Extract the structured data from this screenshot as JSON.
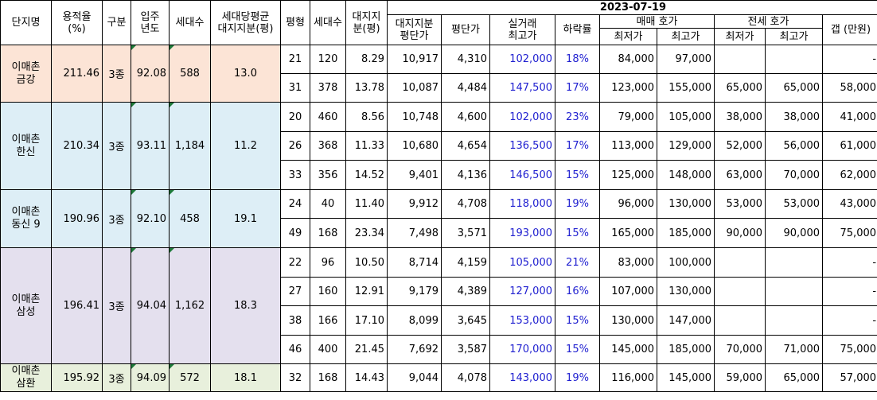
{
  "date": "2023-07-19",
  "headers": {
    "name": "단지명",
    "far_1": "용적율",
    "far_2": "(%)",
    "type": "구분",
    "year_1": "입주",
    "year_2": "년도",
    "households": "세대수",
    "avg_land_1": "세대당평균",
    "avg_land_2": "대지지분(평)",
    "pyeong": "평형",
    "unit_households": "세대수",
    "land_1": "대지지",
    "land_2": "분(평)",
    "land_price_1": "대지지분",
    "land_price_2": "평단가",
    "price_per_pyeong": "평단가",
    "actual_high_1": "실거래",
    "actual_high_2": "최고가",
    "drop_rate": "하락률",
    "sale_group": "매매 호가",
    "lease_group": "전세 호가",
    "lowest": "최저가",
    "highest": "최고가",
    "gap": "갭 (만원)"
  },
  "complexes": [
    {
      "name_1": "이매촌",
      "name_2": "금강",
      "far": "211.46",
      "type": "3종",
      "year": "92.08",
      "households": "588",
      "avg_land": "13.0",
      "units": [
        {
          "pyeong": "21",
          "households": "120",
          "land": "8.29",
          "land_price": "10,917",
          "ppp": "4,310",
          "actual_high": "102,000",
          "drop": "18%",
          "sale_low": "84,000",
          "sale_high": "97,000",
          "lease_low": "",
          "lease_high": "",
          "gap": "-"
        },
        {
          "pyeong": "31",
          "households": "378",
          "land": "13.78",
          "land_price": "10,087",
          "ppp": "4,484",
          "actual_high": "147,500",
          "drop": "17%",
          "sale_low": "123,000",
          "sale_high": "155,000",
          "lease_low": "65,000",
          "lease_high": "65,000",
          "gap": "58,000"
        }
      ]
    },
    {
      "name_1": "이매촌",
      "name_2": "한신",
      "far": "210.34",
      "type": "3종",
      "year": "93.11",
      "households": "1,184",
      "avg_land": "11.2",
      "units": [
        {
          "pyeong": "20",
          "households": "460",
          "land": "8.56",
          "land_price": "10,748",
          "ppp": "4,600",
          "actual_high": "102,000",
          "drop": "23%",
          "sale_low": "79,000",
          "sale_high": "105,000",
          "lease_low": "38,000",
          "lease_high": "38,000",
          "gap": "41,000"
        },
        {
          "pyeong": "26",
          "households": "368",
          "land": "11.33",
          "land_price": "10,680",
          "ppp": "4,654",
          "actual_high": "136,500",
          "drop": "17%",
          "sale_low": "113,000",
          "sale_high": "129,000",
          "lease_low": "52,000",
          "lease_high": "56,000",
          "gap": "61,000"
        },
        {
          "pyeong": "33",
          "households": "356",
          "land": "14.52",
          "land_price": "9,401",
          "ppp": "4,136",
          "actual_high": "146,500",
          "drop": "15%",
          "sale_low": "125,000",
          "sale_high": "148,000",
          "lease_low": "63,000",
          "lease_high": "70,000",
          "gap": "62,000"
        }
      ]
    },
    {
      "name_1": "이매촌",
      "name_2": "동신 9",
      "far": "190.96",
      "type": "3종",
      "year": "92.10",
      "households": "458",
      "avg_land": "19.1",
      "units": [
        {
          "pyeong": "24",
          "households": "40",
          "land": "11.40",
          "land_price": "9,912",
          "ppp": "4,708",
          "actual_high": "118,000",
          "drop": "19%",
          "sale_low": "96,000",
          "sale_high": "130,000",
          "lease_low": "53,000",
          "lease_high": "53,000",
          "gap": "43,000"
        },
        {
          "pyeong": "49",
          "households": "168",
          "land": "23.34",
          "land_price": "7,498",
          "ppp": "3,571",
          "actual_high": "193,000",
          "drop": "15%",
          "sale_low": "165,000",
          "sale_high": "185,000",
          "lease_low": "90,000",
          "lease_high": "90,000",
          "gap": "75,000"
        }
      ]
    },
    {
      "name_1": "이매촌",
      "name_2": "삼성",
      "far": "196.41",
      "type": "3종",
      "year": "94.04",
      "households": "1,162",
      "avg_land": "18.3",
      "units": [
        {
          "pyeong": "22",
          "households": "96",
          "land": "10.50",
          "land_price": "8,714",
          "ppp": "4,159",
          "actual_high": "105,000",
          "drop": "21%",
          "sale_low": "83,000",
          "sale_high": "100,000",
          "lease_low": "",
          "lease_high": "",
          "gap": "-"
        },
        {
          "pyeong": "27",
          "households": "160",
          "land": "12.91",
          "land_price": "9,179",
          "ppp": "4,389",
          "actual_high": "127,000",
          "drop": "16%",
          "sale_low": "107,000",
          "sale_high": "130,000",
          "lease_low": "",
          "lease_high": "",
          "gap": "-"
        },
        {
          "pyeong": "38",
          "households": "166",
          "land": "17.10",
          "land_price": "8,099",
          "ppp": "3,645",
          "actual_high": "153,000",
          "drop": "15%",
          "sale_low": "130,000",
          "sale_high": "147,000",
          "lease_low": "",
          "lease_high": "",
          "gap": "-"
        },
        {
          "pyeong": "46",
          "households": "400",
          "land": "21.45",
          "land_price": "7,692",
          "ppp": "3,587",
          "actual_high": "170,000",
          "drop": "15%",
          "sale_low": "145,000",
          "sale_high": "185,000",
          "lease_low": "70,000",
          "lease_high": "71,000",
          "gap": "75,000"
        }
      ]
    },
    {
      "name_1": "이매촌",
      "name_2": "삼환",
      "far": "195.92",
      "type": "3종",
      "year": "94.09",
      "households": "572",
      "avg_land": "18.1",
      "units": [
        {
          "pyeong": "32",
          "households": "168",
          "land": "14.43",
          "land_price": "9,044",
          "ppp": "4,078",
          "actual_high": "143,000",
          "drop": "19%",
          "sale_low": "116,000",
          "sale_high": "145,000",
          "lease_low": "59,000",
          "lease_high": "65,000",
          "gap": "57,000"
        }
      ]
    }
  ]
}
